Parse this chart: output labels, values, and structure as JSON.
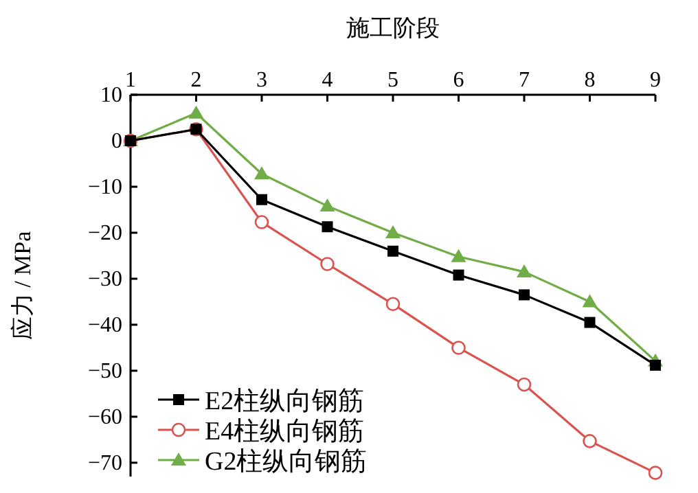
{
  "chart_data": {
    "type": "line",
    "xlabel": "施工阶段",
    "ylabel": "应力 / MPa",
    "x": [
      1,
      2,
      3,
      4,
      5,
      6,
      7,
      8,
      9
    ],
    "xlim": [
      1,
      9
    ],
    "xticks": [
      1,
      2,
      3,
      4,
      5,
      6,
      7,
      8,
      9
    ],
    "ylim": [
      -73,
      10
    ],
    "yticks": [
      10,
      0,
      -10,
      -20,
      -30,
      -40,
      -50,
      -60,
      -70
    ],
    "grid": false,
    "legend": "bottom left",
    "series": [
      {
        "name": "E2柱纵向钢筋",
        "color": "#000000",
        "marker": "square",
        "values": [
          0,
          2.5,
          -12.8,
          -18.7,
          -24,
          -29.2,
          -33.5,
          -39.5,
          -48.8
        ]
      },
      {
        "name": "E4柱纵向钢筋",
        "color": "#d9534f",
        "marker": "circle",
        "values": [
          0,
          2.5,
          -17.7,
          -26.8,
          -35.5,
          -45,
          -53,
          -65.3,
          -72.2
        ]
      },
      {
        "name": "G2柱纵向钢筋",
        "color": "#70ad47",
        "marker": "triangle",
        "values": [
          0,
          6,
          -7.2,
          -14.2,
          -20,
          -25.2,
          -28.5,
          -35,
          -47.9
        ]
      }
    ]
  }
}
